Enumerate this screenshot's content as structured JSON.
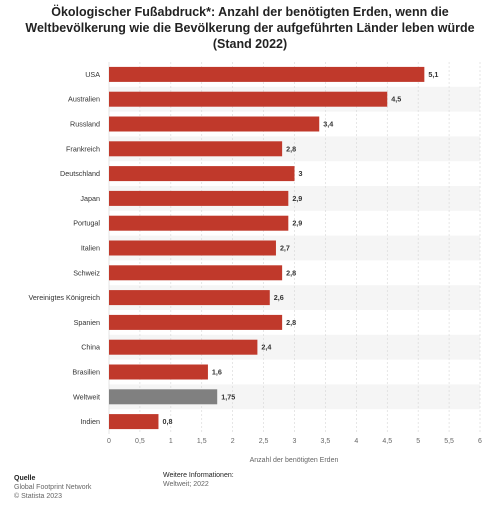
{
  "title": "Ökologischer Fußabdruck*: Anzahl der benötigten Erden, wenn die Weltbevölkerung wie die Bevölkerung der aufgeführten Länder leben würde (Stand 2022)",
  "footer": {
    "source_heading": "Quelle",
    "source_lines": [
      "Global Footprint Network",
      "© Statista 2023"
    ],
    "info_heading": "Weitere Informationen:",
    "info_text": "Weltweit; 2022"
  },
  "colors": {
    "bar": "#c0392b",
    "highlight": "#808080",
    "stripe": "#f5f5f5",
    "grid": "#d6d6d6",
    "text": "#333333",
    "axis_text": "#666666"
  },
  "chart_data": {
    "type": "bar",
    "orientation": "horizontal",
    "categories": [
      "USA",
      "Australien",
      "Russland",
      "Frankreich",
      "Deutschland",
      "Japan",
      "Portugal",
      "Italien",
      "Schweiz",
      "Vereinigtes Königreich",
      "Spanien",
      "China",
      "Brasilien",
      "Weltweit",
      "Indien"
    ],
    "values": [
      5.1,
      4.5,
      3.4,
      2.8,
      3,
      2.9,
      2.9,
      2.7,
      2.8,
      2.6,
      2.8,
      2.4,
      1.6,
      1.75,
      0.8
    ],
    "value_labels": [
      "5,1",
      "4,5",
      "3,4",
      "2,8",
      "3",
      "2,9",
      "2,9",
      "2,7",
      "2,8",
      "2,6",
      "2,8",
      "2,4",
      "1,6",
      "1,75",
      "0,8"
    ],
    "highlight_category": "Weltweit",
    "xlabel": "Anzahl der benötigten Erden",
    "ylabel": "",
    "xlim": [
      0,
      6
    ],
    "ticks": [
      0,
      0.5,
      1,
      1.5,
      2,
      2.5,
      3,
      3.5,
      4,
      4.5,
      5,
      5.5,
      6
    ],
    "tick_labels": [
      "0",
      "0,5",
      "1",
      "1,5",
      "2",
      "2,5",
      "3",
      "3,5",
      "4",
      "4,5",
      "5",
      "5,5",
      "6"
    ],
    "grid": true,
    "legend": "none"
  }
}
